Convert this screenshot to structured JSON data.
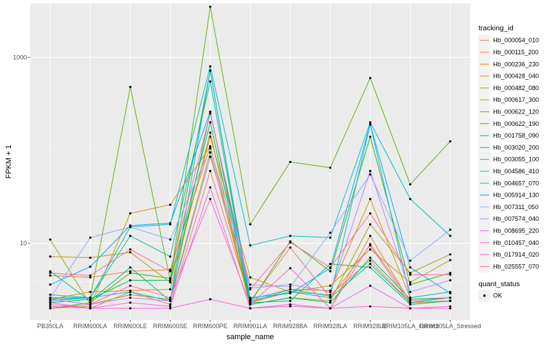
{
  "chart_data": {
    "type": "line",
    "xlabel": "sample_name",
    "ylabel": "FPKM + 1",
    "y_scale": "log10",
    "ylim": [
      1.5,
      3800
    ],
    "y_ticks": [
      {
        "value": 10,
        "label": "10"
      },
      {
        "value": 1000,
        "label": "1000"
      }
    ],
    "grid": true,
    "categories": [
      "PB350LA",
      "RRIM600LA",
      "RRIM600LE",
      "RRIM600SE",
      "RRIM600PE",
      "RRIM901LA",
      "RRIM928BA",
      "RRIM928LA",
      "RRIM928LE",
      "RRIM105LA_Control",
      "RRIM105LA_Stressed"
    ],
    "legend": {
      "title": "tracking_id",
      "placement": "right",
      "status_title": "quant_status",
      "status_entries": [
        "OK"
      ]
    },
    "series": [
      {
        "name": "Hb_000054_010",
        "color": "#F8766D",
        "values": [
          2.2,
          2.0,
          3.0,
          2.2,
          60,
          2.4,
          9.0,
          2.6,
          9.5,
          2.2,
          2.4
        ]
      },
      {
        "name": "Hb_000115_200",
        "color": "#EE8044",
        "values": [
          4.5,
          4.3,
          5.0,
          5.2,
          110,
          2.3,
          3.0,
          2.8,
          6.5,
          2.3,
          2.4
        ]
      },
      {
        "name": "Hb_000236_230",
        "color": "#E38900",
        "values": [
          2.5,
          3.0,
          3.1,
          3.2,
          155,
          2.0,
          2.2,
          2.0,
          12.0,
          2.3,
          2.4
        ]
      },
      {
        "name": "Hb_000428_040",
        "color": "#D49200",
        "values": [
          2.0,
          2.1,
          21.0,
          26.0,
          110,
          2.3,
          3.2,
          3.1,
          30.0,
          2.6,
          3.0
        ]
      },
      {
        "name": "Hb_000482_080",
        "color": "#B79F00",
        "values": [
          7.2,
          7.0,
          8.0,
          3.8,
          140,
          4.3,
          3.0,
          3.5,
          8.6,
          3.8,
          6.6
        ]
      },
      {
        "name": "Hb_000617_300",
        "color": "#9DA700",
        "values": [
          11.0,
          2.2,
          2.8,
          2.5,
          95,
          2.2,
          2.6,
          2.4,
          16.0,
          4.8,
          7.6
        ]
      },
      {
        "name": "Hb_000622_120",
        "color": "#60B010",
        "values": [
          2.6,
          2.6,
          480,
          4.0,
          3500,
          16.0,
          75,
          65,
          600,
          43,
          125
        ]
      },
      {
        "name": "Hb_000622_190",
        "color": "#39B600",
        "values": [
          2.0,
          2.3,
          4.8,
          4.2,
          720,
          2.3,
          10.5,
          5.0,
          140,
          3.6,
          4.8
        ]
      },
      {
        "name": "Hb_001758_090",
        "color": "#00BB4E",
        "values": [
          2.3,
          2.5,
          4.0,
          4.0,
          200,
          2.2,
          2.6,
          2.3,
          7.0,
          2.5,
          2.6
        ]
      },
      {
        "name": "Hb_003020_200",
        "color": "#00BF7D",
        "values": [
          5.0,
          2.4,
          5.5,
          2.4,
          260,
          2.3,
          2.4,
          6.0,
          5.5,
          2.2,
          2.4
        ]
      },
      {
        "name": "Hb_003055_100",
        "color": "#00C1A3",
        "values": [
          2.8,
          2.6,
          12.0,
          7.2,
          550,
          2.4,
          3.0,
          2.6,
          6.0,
          2.3,
          2.6
        ]
      },
      {
        "name": "Hb_004586_410",
        "color": "#00BFC4",
        "values": [
          2.5,
          2.6,
          15.0,
          16.0,
          800,
          9.5,
          12.0,
          11.5,
          200,
          30,
          12
        ]
      },
      {
        "name": "Hb_004657_070",
        "color": "#00B8E5",
        "values": [
          2.4,
          2.6,
          3.0,
          2.4,
          720,
          2.5,
          3.2,
          2.7,
          190,
          2.6,
          3.0
        ]
      },
      {
        "name": "Hb_005914_130",
        "color": "#00A9FF",
        "values": [
          3.6,
          5.6,
          15.5,
          16.5,
          260,
          2.6,
          2.9,
          5.4,
          190,
          5.5,
          2.9
        ]
      },
      {
        "name": "Hb_007311_050",
        "color": "#8AAB FF",
        "values": [
          2.6,
          11.5,
          15.0,
          11.0,
          105,
          3.6,
          3.4,
          13.0,
          55,
          6.5,
          14
        ]
      },
      {
        "name": "Hb_007574_040",
        "color": "#C77CFF",
        "values": [
          2.5,
          2.2,
          2.6,
          2.4,
          85,
          3.3,
          3.6,
          3.0,
          60,
          3.0,
          4.0
        ]
      },
      {
        "name": "Hb_008695_220",
        "color": "#E76BF3",
        "values": [
          2.1,
          2.0,
          2.3,
          2.1,
          40,
          2.0,
          2.2,
          2.0,
          3.5,
          2.0,
          2.1
        ]
      },
      {
        "name": "Hb_010457_040",
        "color": "#FA62DB",
        "values": [
          2.3,
          2.0,
          2.0,
          2.0,
          2.5,
          2.0,
          2.1,
          2.0,
          2.1,
          2.0,
          2.0
        ]
      },
      {
        "name": "Hb_017914_020",
        "color": "#FF62BC",
        "values": [
          2.0,
          2.2,
          3.5,
          2.6,
          30,
          2.2,
          5.4,
          2.0,
          9.8,
          2.4,
          2.6
        ]
      },
      {
        "name": "Hb_025557_070",
        "color": "#FF6C91",
        "values": [
          4.8,
          4.5,
          8.6,
          5.0,
          250,
          3.2,
          10.2,
          5.5,
          21.0,
          4.6,
          4.6
        ]
      }
    ]
  }
}
